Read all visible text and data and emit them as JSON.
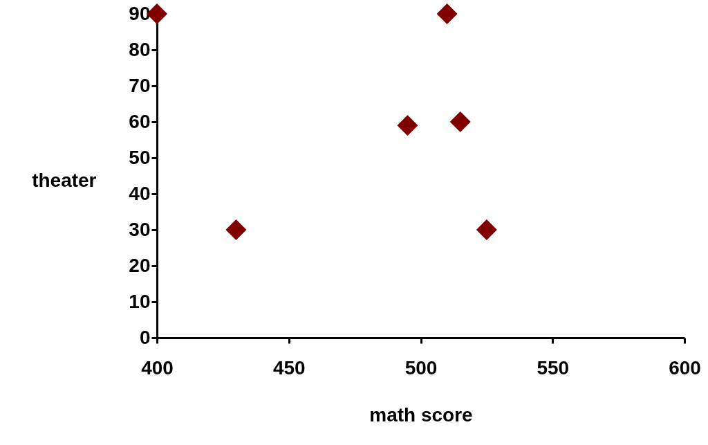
{
  "chart_data": {
    "type": "scatter",
    "xlabel": "math score",
    "ylabel": "theater",
    "x": [
      400,
      510,
      495,
      515,
      430,
      525
    ],
    "series": [
      {
        "color": "#800000",
        "values": [
          90,
          90,
          59,
          60,
          30,
          30
        ]
      }
    ],
    "xlim": [
      400,
      600
    ],
    "xticks": [
      400,
      450,
      500,
      550,
      600
    ],
    "ylim": [
      0,
      90
    ],
    "yticks": [
      0,
      10,
      20,
      30,
      40,
      50,
      60,
      70,
      80,
      90
    ],
    "marker": "diamond",
    "grid": false
  }
}
